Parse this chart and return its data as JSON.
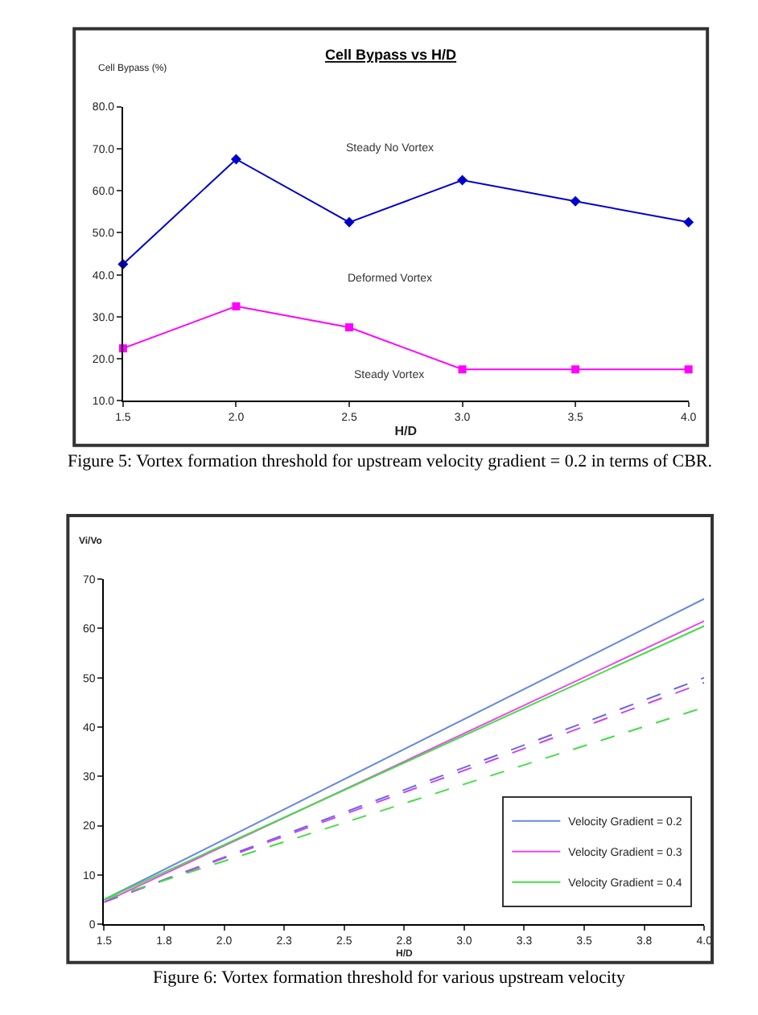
{
  "chart_data": [
    {
      "type": "line",
      "title": "Cell Bypass vs H/D",
      "xlabel": "H/D",
      "ylabel": "Cell Bypass (%)",
      "x": [
        1.5,
        2.0,
        2.5,
        3.0,
        3.5,
        4.0
      ],
      "series": [
        {
          "color": "#0000cc",
          "values": [
            42.5,
            67.5,
            52.5,
            62.5,
            57.5,
            52.5
          ],
          "marker": "diamond"
        },
        {
          "color": "#ff00ff",
          "values": [
            22.5,
            32.5,
            27.5,
            17.5,
            17.5,
            17.5
          ],
          "marker": "square"
        }
      ],
      "xlim": [
        1.5,
        4.0
      ],
      "xticks": [
        {
          "value": 1.5,
          "label": "1.5"
        },
        {
          "value": 2.0,
          "label": "2.0"
        },
        {
          "value": 2.5,
          "label": "2.5"
        },
        {
          "value": 3.0,
          "label": "3.0"
        },
        {
          "value": 3.5,
          "label": "3.5"
        },
        {
          "value": 4.0,
          "label": "4.0"
        }
      ],
      "ylim": [
        10,
        80
      ],
      "yticks": [
        {
          "value": 10,
          "label": "10.0"
        },
        {
          "value": 20,
          "label": "20.0"
        },
        {
          "value": 30,
          "label": "30.0"
        },
        {
          "value": 40,
          "label": "40.0"
        },
        {
          "value": 50,
          "label": "50.0"
        },
        {
          "value": 60,
          "label": "60.0"
        },
        {
          "value": 70,
          "label": "70.0"
        },
        {
          "value": 80,
          "label": "80.0"
        }
      ],
      "legend": false,
      "line_style": "solid",
      "annotations": [
        "Steady No Vortex",
        "Deformed Vortex",
        "Steady Vortex",
        "Figure 5: Vortex formation threshold for upstream velocity gradient = 0.2 in terms of CBR."
      ]
    },
    {
      "type": "line",
      "xlabel": "H/D",
      "ylabel": "Vi/Vo",
      "x": [
        1.5,
        4.0
      ],
      "series": [
        {
          "name": "Velocity Gradient = 0.2",
          "color": "#6688dd",
          "values": [
            5,
            66
          ],
          "line_style": "solid"
        },
        {
          "name": "Velocity Gradient = 0.3",
          "color": "#ee44ee",
          "values": [
            4.5,
            61.5
          ],
          "line_style": "solid"
        },
        {
          "name": "Velocity Gradient = 0.4",
          "color": "#44dd44",
          "values": [
            5,
            60.5
          ],
          "line_style": "solid"
        },
        {
          "color": "#6666ee",
          "values": [
            4.5,
            50
          ],
          "line_style": "dashed"
        },
        {
          "color": "#cc44ee",
          "values": [
            4.5,
            49
          ],
          "line_style": "dashed"
        },
        {
          "color": "#44dd44",
          "values": [
            5,
            44
          ],
          "line_style": "dashed"
        }
      ],
      "xlim": [
        1.5,
        4.0
      ],
      "xticks": [
        {
          "value": 1.5,
          "label": "1.5"
        },
        {
          "value": 1.75,
          "label": "1.8"
        },
        {
          "value": 2.0,
          "label": "2.0"
        },
        {
          "value": 2.25,
          "label": "2.3"
        },
        {
          "value": 2.5,
          "label": "2.5"
        },
        {
          "value": 2.75,
          "label": "2.8"
        },
        {
          "value": 3.0,
          "label": "3.0"
        },
        {
          "value": 3.25,
          "label": "3.3"
        },
        {
          "value": 3.5,
          "label": "3.5"
        },
        {
          "value": 3.75,
          "label": "3.8"
        },
        {
          "value": 4.0,
          "label": "4.0"
        }
      ],
      "ylim": [
        0,
        70
      ],
      "yticks": [
        0,
        10,
        20,
        30,
        40,
        50,
        60,
        70
      ],
      "legend": "bottom right",
      "marker": "none",
      "annotations": [
        "Figure 6: Vortex formation threshold for various upstream velocity"
      ]
    }
  ]
}
